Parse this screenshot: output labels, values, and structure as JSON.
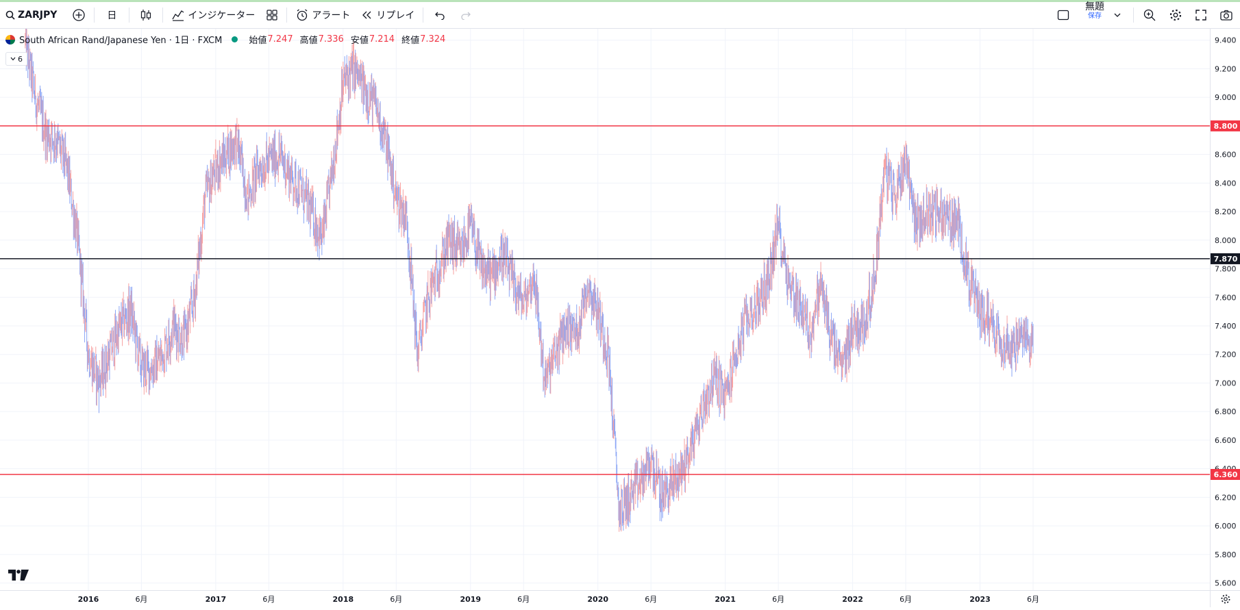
{
  "toolbar": {
    "symbol": "ZARJPY",
    "interval": "日",
    "indicators": "インジケーター",
    "alert": "アラート",
    "replay": "リプレイ",
    "layout_title": "無題",
    "layout_sub": "保存"
  },
  "legend": {
    "title": "South African Rand/Japanese Yen · 1日 · FXCM",
    "open_label": "始値",
    "open": "7.247",
    "high_label": "高値",
    "high": "7.336",
    "low_label": "安値",
    "low": "7.214",
    "close_label": "終値",
    "close": "7.324",
    "collapsed_count": "6"
  },
  "colors": {
    "up": "#f7a1a1",
    "down": "#8aa5f5",
    "hline_red": "#f23645",
    "hline_black": "#131722"
  },
  "chart_data": {
    "type": "line",
    "ylim": [
      5.55,
      9.48
    ],
    "price_ticks": [
      "9.400",
      "9.200",
      "9.000",
      "8.800",
      "8.600",
      "8.400",
      "8.200",
      "8.000",
      "7.800",
      "7.600",
      "7.400",
      "7.200",
      "7.000",
      "6.800",
      "6.600",
      "6.400",
      "6.200",
      "6.000",
      "5.800",
      "5.600"
    ],
    "time_labels": [
      "2016",
      "6月",
      "2017",
      "6月",
      "2018",
      "6月",
      "2019",
      "6月",
      "2020",
      "6月",
      "2021",
      "6月",
      "2022",
      "6月",
      "2023",
      "6月"
    ],
    "horizontal_lines": [
      {
        "price": 8.8,
        "label": "8.800",
        "color": "#f23645"
      },
      {
        "price": 7.87,
        "label": "7.870",
        "color": "#131722"
      },
      {
        "price": 6.36,
        "label": "6.360",
        "color": "#f23645"
      }
    ],
    "series": [
      {
        "x": [
          "2015-07",
          "2015-08",
          "2015-09",
          "2015-10",
          "2015-11",
          "2015-12",
          "2016-01",
          "2016-02",
          "2016-03",
          "2016-04",
          "2016-05",
          "2016-06",
          "2016-07",
          "2016-08",
          "2016-09",
          "2016-10",
          "2016-11",
          "2016-12",
          "2017-01",
          "2017-02",
          "2017-03",
          "2017-04",
          "2017-05",
          "2017-06",
          "2017-07",
          "2017-08",
          "2017-09",
          "2017-10",
          "2017-11",
          "2017-12",
          "2018-01",
          "2018-02",
          "2018-03",
          "2018-04",
          "2018-05",
          "2018-06",
          "2018-07",
          "2018-08",
          "2018-09",
          "2018-10",
          "2018-11",
          "2018-12",
          "2019-01",
          "2019-02",
          "2019-03",
          "2019-04",
          "2019-05",
          "2019-06",
          "2019-07",
          "2019-08",
          "2019-09",
          "2019-10",
          "2019-11",
          "2019-12",
          "2020-01",
          "2020-02",
          "2020-03",
          "2020-04",
          "2020-05",
          "2020-06",
          "2020-07",
          "2020-08",
          "2020-09",
          "2020-10",
          "2020-11",
          "2020-12",
          "2021-01",
          "2021-02",
          "2021-03",
          "2021-04",
          "2021-05",
          "2021-06",
          "2021-07",
          "2021-08",
          "2021-09",
          "2021-10",
          "2021-11",
          "2021-12",
          "2022-01",
          "2022-02",
          "2022-03",
          "2022-04",
          "2022-05",
          "2022-06",
          "2022-07",
          "2022-08",
          "2022-09",
          "2022-10",
          "2022-11",
          "2022-12",
          "2023-01",
          "2023-02",
          "2023-03",
          "2023-04",
          "2023-05",
          "2023-06"
        ],
        "values": [
          9.4,
          9.0,
          8.75,
          8.7,
          8.5,
          8.0,
          7.2,
          7.0,
          7.2,
          7.4,
          7.5,
          7.1,
          7.1,
          7.2,
          7.4,
          7.3,
          7.6,
          8.3,
          8.5,
          8.6,
          8.7,
          8.3,
          8.5,
          8.55,
          8.6,
          8.45,
          8.35,
          8.2,
          8.0,
          8.5,
          9.1,
          9.2,
          9.05,
          8.95,
          8.7,
          8.3,
          8.15,
          7.2,
          7.6,
          7.8,
          8.0,
          7.9,
          8.1,
          7.8,
          7.75,
          7.9,
          7.7,
          7.55,
          7.75,
          7.0,
          7.2,
          7.4,
          7.35,
          7.7,
          7.5,
          7.2,
          6.1,
          6.2,
          6.3,
          6.45,
          6.2,
          6.3,
          6.4,
          6.6,
          6.85,
          7.05,
          6.9,
          7.2,
          7.45,
          7.55,
          7.7,
          8.1,
          7.7,
          7.55,
          7.35,
          7.7,
          7.3,
          7.1,
          7.4,
          7.4,
          7.7,
          8.5,
          8.3,
          8.6,
          8.1,
          8.2,
          8.2,
          8.15,
          8.1,
          7.7,
          7.5,
          7.45,
          7.3,
          7.25,
          7.3,
          7.32
        ]
      }
    ]
  }
}
